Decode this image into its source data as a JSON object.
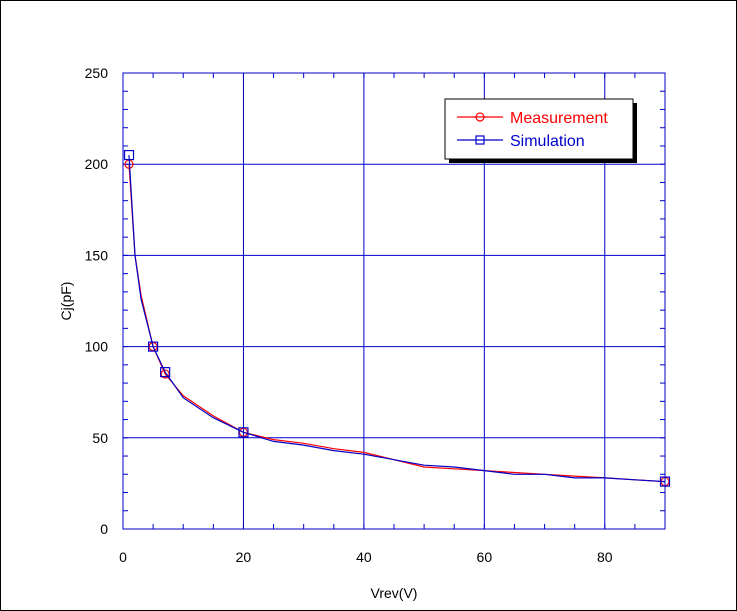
{
  "chart_data": {
    "type": "line",
    "title": "",
    "xlabel": "Vrev(V)",
    "ylabel": "Cj(pF)",
    "xlim": [
      0,
      90
    ],
    "ylim": [
      0,
      250
    ],
    "xticks": [
      0,
      20,
      40,
      60,
      80
    ],
    "yticks": [
      0,
      50,
      100,
      150,
      200,
      250
    ],
    "grid": true,
    "legend_position": "top-right",
    "series": [
      {
        "name": "Measurement",
        "color": "#ff0000",
        "marker": "circle",
        "x": [
          1,
          2,
          3,
          5,
          7,
          10,
          15,
          20,
          25,
          30,
          35,
          40,
          45,
          50,
          55,
          60,
          65,
          70,
          75,
          80,
          85,
          90
        ],
        "y": [
          200,
          150,
          128,
          100,
          85,
          73,
          62,
          53,
          49,
          47,
          44,
          42,
          38,
          34,
          33,
          32,
          31,
          30,
          29,
          28,
          27,
          26
        ],
        "marked_x": [
          1,
          5,
          7,
          20,
          90
        ]
      },
      {
        "name": "Simulation",
        "color": "#0000cc",
        "marker": "square",
        "x": [
          1,
          2,
          3,
          5,
          7,
          10,
          15,
          20,
          25,
          30,
          35,
          40,
          45,
          50,
          55,
          60,
          65,
          70,
          75,
          80,
          85,
          90
        ],
        "y": [
          205,
          150,
          126,
          100,
          86,
          72,
          61,
          53,
          48,
          46,
          43,
          41,
          38,
          35,
          34,
          32,
          30,
          30,
          28,
          28,
          27,
          26
        ],
        "marked_x": [
          1,
          5,
          7,
          20,
          90
        ]
      }
    ]
  }
}
